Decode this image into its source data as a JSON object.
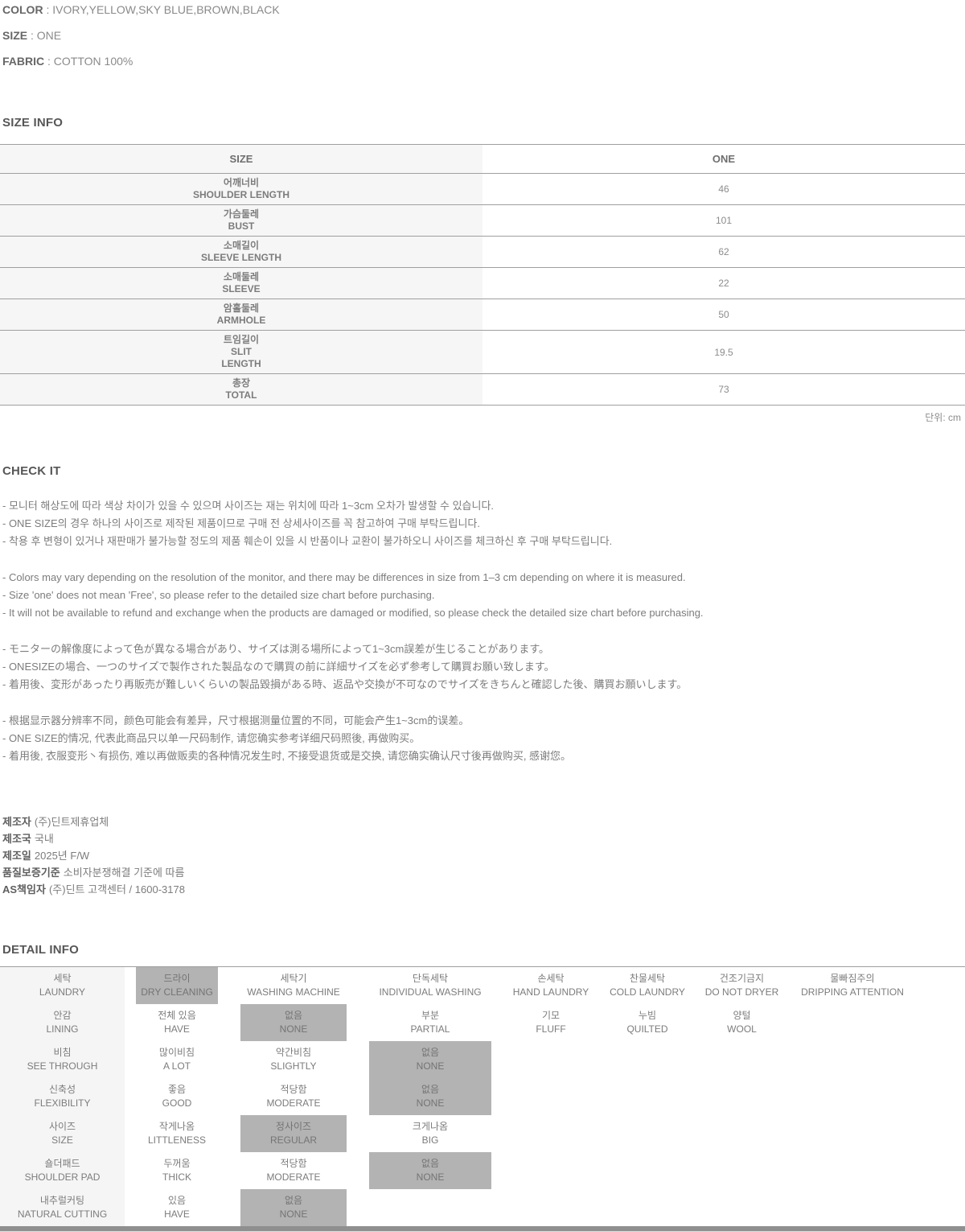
{
  "colors": {
    "selected_cell_bg": "#b3b3b3",
    "label_column_bg": "#f5f5f5",
    "table_border": "#9f9f9f",
    "bottom_bar": "#8f8f8f"
  },
  "separator": " : ",
  "top_info": [
    {
      "label": "COLOR",
      "value": "IVORY,YELLOW,SKY BLUE,BROWN,BLACK"
    },
    {
      "label": "SIZE",
      "value": "ONE"
    },
    {
      "label": "FABRIC",
      "value": "COTTON 100%"
    }
  ],
  "size_info": {
    "heading": "SIZE INFO",
    "header": {
      "metric": "SIZE",
      "value": "ONE"
    },
    "rows": [
      {
        "ko": "어깨너비",
        "en": "SHOULDER LENGTH",
        "value": "46"
      },
      {
        "ko": "가슴둘레",
        "en": "BUST",
        "value": "101"
      },
      {
        "ko": "소매길이",
        "en": "SLEEVE LENGTH",
        "value": "62"
      },
      {
        "ko": "소매둘레",
        "en": "SLEEVE",
        "value": "22"
      },
      {
        "ko": "암홀둘레",
        "en": "ARMHOLE",
        "value": "50"
      },
      {
        "ko": "트임길이",
        "en": "SLIT\nLENGTH",
        "value": "19.5"
      },
      {
        "ko": "총장",
        "en": "TOTAL",
        "value": "73"
      }
    ],
    "unit_note": "단위: cm"
  },
  "check_it": {
    "heading": "CHECK IT",
    "groups": [
      {
        "lines": [
          "- 모니터 해상도에 따라 색상 차이가 있을 수 있으며 사이즈는 재는 위치에 따라 1~3cm 오차가 발생할 수 있습니다.",
          "- ONE SIZE의 경우 하나의 사이즈로 제작된 제품이므로 구매 전 상세사이즈를 꼭 참고하여 구매 부탁드립니다.",
          "- 착용 후 변형이 있거나 재판매가 불가능할 정도의 제품 훼손이 있을 시 반품이나 교환이 불가하오니 사이즈를 체크하신 후 구매 부탁드립니다."
        ]
      },
      {
        "lines": [
          "- Colors may vary depending on the resolution of the monitor, and there may be differences in size from 1–3 cm depending on where it is measured.",
          "- Size 'one' does not mean 'Free', so please refer to the detailed size chart before purchasing.",
          "- It will not be available to refund and exchange when the products are damaged or modified, so please check the detailed size chart before purchasing."
        ]
      },
      {
        "lines": [
          "- モニターの解像度によって色が異なる場合があり、サイズは測る場所によって1~3cm誤差が生じることがあります。",
          "- ONESIZEの場合、一つのサイズで製作された製品なので購買の前に詳細サイズを必ず参考して購買お願い致します。",
          "- 着用後、変形があったり再販売が難しいくらいの製品毀損がある時、返品や交換が不可なのでサイズをきちんと確認した後、購買お願いします。"
        ]
      },
      {
        "lines": [
          "- 根据显示器分辨率不同，颜色可能会有差异，尺寸根据测量位置的不同，可能会产生1~3cm的误差。",
          "- ONE SIZE的情况, 代表此商品只以单一尺码制作, 请您确实参考详细尺码照後, 再做购买。",
          "- 着用後, 衣服变形丶有损伤, 难以再做贩卖的各种情况发生时, 不接受退货或是交换, 请您确实确认尺寸後再做购买, 感谢您。"
        ]
      }
    ]
  },
  "manufacturer": {
    "lines": [
      {
        "label": "제조자",
        "value": "(주)딘트제휴업체"
      },
      {
        "label": "제조국",
        "value": "국내"
      },
      {
        "label": "제조일",
        "value": "2025년 F/W"
      },
      {
        "label": "품질보증기준",
        "value": "소비자분쟁해결 기준에 따름"
      },
      {
        "label": "AS책임자",
        "value": "(주)딘트 고객센터 / 1600-3178"
      }
    ]
  },
  "detail_info": {
    "heading": "DETAIL INFO",
    "rows": [
      {
        "cells": [
          {
            "ko": "세탁",
            "en": "LAUNDRY",
            "type": "label"
          },
          {
            "ko": "드라이",
            "en": "DRY CLEANING",
            "selected": true
          },
          {
            "ko": "세탁기",
            "en": "WASHING MACHINE"
          },
          {
            "ko": "단독세탁",
            "en": "INDIVIDUAL WASHING"
          },
          {
            "ko": "손세탁",
            "en": "HAND LAUNDRY"
          },
          {
            "ko": "찬물세탁",
            "en": "COLD LAUNDRY"
          },
          {
            "ko": "건조기금지",
            "en": "DO NOT DRYER"
          },
          {
            "ko": "물빠짐주의",
            "en": "DRIPPING ATTENTION"
          }
        ]
      },
      {
        "cells": [
          {
            "ko": "안감",
            "en": "LINING",
            "type": "label"
          },
          {
            "ko": "전체 있음",
            "en": "HAVE"
          },
          {
            "ko": "없음",
            "en": "NONE",
            "selected": true
          },
          {
            "ko": "부분",
            "en": "PARTIAL"
          },
          {
            "ko": "기모",
            "en": "FLUFF"
          },
          {
            "ko": "누빔",
            "en": "QUILTED"
          },
          {
            "ko": "양털",
            "en": "WOOL"
          }
        ]
      },
      {
        "cells": [
          {
            "ko": "비침",
            "en": "SEE THROUGH",
            "type": "label"
          },
          {
            "ko": "많이비침",
            "en": "A LOT"
          },
          {
            "ko": "약간비침",
            "en": "SLIGHTLY"
          },
          {
            "ko": "없음",
            "en": "NONE",
            "selected": true
          }
        ]
      },
      {
        "cells": [
          {
            "ko": "신축성",
            "en": "FLEXIBILITY",
            "type": "label"
          },
          {
            "ko": "좋음",
            "en": "GOOD"
          },
          {
            "ko": "적당함",
            "en": "MODERATE"
          },
          {
            "ko": "없음",
            "en": "NONE",
            "selected": true
          }
        ]
      },
      {
        "cells": [
          {
            "ko": "사이즈",
            "en": "SIZE",
            "type": "label"
          },
          {
            "ko": "작게나옴",
            "en": "LITTLENESS"
          },
          {
            "ko": "정사이즈",
            "en": "REGULAR",
            "selected": true
          },
          {
            "ko": "크게나옴",
            "en": "BIG"
          }
        ]
      },
      {
        "cells": [
          {
            "ko": "숄더패드",
            "en": "SHOULDER PAD",
            "type": "label"
          },
          {
            "ko": "두꺼움",
            "en": "THICK"
          },
          {
            "ko": "적당함",
            "en": "MODERATE"
          },
          {
            "ko": "없음",
            "en": "NONE",
            "selected": true
          }
        ]
      },
      {
        "cells": [
          {
            "ko": "내추럴커팅",
            "en": "NATURAL CUTTING",
            "type": "label"
          },
          {
            "ko": "있음",
            "en": "HAVE"
          },
          {
            "ko": "없음",
            "en": "NONE",
            "selected": true
          }
        ]
      }
    ]
  }
}
